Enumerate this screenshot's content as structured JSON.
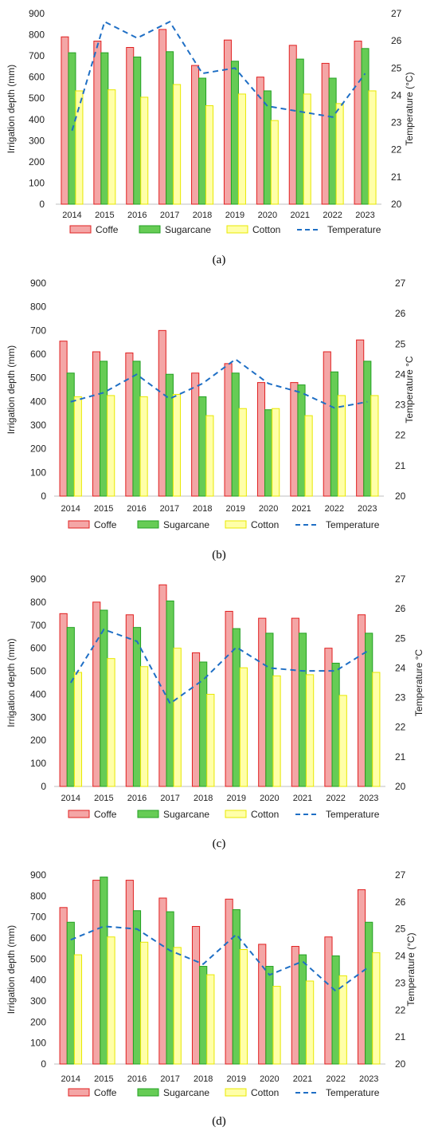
{
  "colors": {
    "coffe_fill": "#F4A6A6",
    "coffe_stroke": "#E02020",
    "sugarcane_fill": "#66CC55",
    "sugarcane_stroke": "#22A022",
    "cotton_fill": "#FFFFA8",
    "cotton_stroke": "#E8E800",
    "temperature": "#1F6FC5"
  },
  "chart_data": [
    {
      "type": "bar",
      "caption": "(a)",
      "categories": [
        "2014",
        "2015",
        "2016",
        "2017",
        "2018",
        "2019",
        "2020",
        "2021",
        "2022",
        "2023"
      ],
      "ylabel": "Irrigation depth  (mm)",
      "y2label": "Temperature (°C)",
      "ylim": [
        0,
        900
      ],
      "y2lim": [
        20,
        27
      ],
      "yticks": [
        "0",
        "100",
        "200",
        "300",
        "400",
        "500",
        "600",
        "700",
        "800",
        "900"
      ],
      "y2ticks": [
        "20",
        "21",
        "22",
        "23",
        "24",
        "25",
        "26",
        "27"
      ],
      "legend_position": "bottom",
      "grid": false,
      "series": [
        {
          "name": "Coffe",
          "values": [
            790,
            770,
            740,
            825,
            655,
            775,
            600,
            750,
            665,
            770
          ]
        },
        {
          "name": "Sugarcane",
          "values": [
            715,
            715,
            695,
            720,
            595,
            675,
            535,
            685,
            595,
            735
          ]
        },
        {
          "name": "Cotton",
          "values": [
            535,
            540,
            505,
            565,
            465,
            520,
            395,
            520,
            475,
            535
          ]
        }
      ],
      "line_series": {
        "name": "Temperature",
        "values": [
          22.7,
          26.7,
          26.1,
          26.7,
          24.8,
          25.0,
          23.6,
          23.4,
          23.2,
          24.8
        ]
      }
    },
    {
      "type": "bar",
      "caption": "(b)",
      "categories": [
        "2014",
        "2015",
        "2016",
        "2017",
        "2018",
        "2019",
        "2020",
        "2021",
        "2022",
        "2023"
      ],
      "ylabel": "Irrigation depth  (mm)",
      "y2label": "Temperature  °C",
      "ylim": [
        0,
        900
      ],
      "y2lim": [
        20,
        27
      ],
      "yticks": [
        "0",
        "100",
        "200",
        "300",
        "400",
        "500",
        "600",
        "700",
        "800",
        "900"
      ],
      "y2ticks": [
        "20",
        "21",
        "22",
        "23",
        "24",
        "25",
        "26",
        "27"
      ],
      "legend_position": "bottom",
      "grid": false,
      "series": [
        {
          "name": "Coffe",
          "values": [
            655,
            610,
            605,
            700,
            520,
            560,
            480,
            480,
            610,
            660
          ]
        },
        {
          "name": "Sugarcane",
          "values": [
            520,
            570,
            570,
            515,
            420,
            520,
            365,
            470,
            525,
            570
          ]
        },
        {
          "name": "Cotton",
          "values": [
            420,
            425,
            420,
            430,
            340,
            370,
            370,
            340,
            425,
            425
          ]
        }
      ],
      "line_series": {
        "name": "Temperature",
        "values": [
          23.1,
          23.4,
          24.0,
          23.2,
          23.7,
          24.5,
          23.7,
          23.4,
          22.9,
          23.1
        ]
      }
    },
    {
      "type": "bar",
      "caption": "(c)",
      "categories": [
        "2014",
        "2015",
        "2016",
        "2017",
        "2018",
        "2019",
        "2020",
        "2021",
        "2022",
        "2023"
      ],
      "ylabel": "Irrigation depth  (mm)",
      "y2label": "Temperature  °C",
      "ylim": [
        0,
        900
      ],
      "y2lim": [
        20,
        27
      ],
      "yticks": [
        "0",
        "100",
        "200",
        "300",
        "400",
        "500",
        "600",
        "700",
        "800",
        "900"
      ],
      "y2ticks": [
        "20",
        "21",
        "22",
        "23",
        "24",
        "25",
        "26",
        "27"
      ],
      "legend_position": "bottom",
      "grid": false,
      "series": [
        {
          "name": "Coffe",
          "values": [
            750,
            800,
            745,
            875,
            580,
            760,
            730,
            730,
            600,
            745
          ]
        },
        {
          "name": "Sugarcane",
          "values": [
            690,
            765,
            690,
            805,
            540,
            685,
            665,
            665,
            535,
            665
          ]
        },
        {
          "name": "Cotton",
          "values": [
            495,
            555,
            520,
            600,
            400,
            515,
            480,
            485,
            395,
            495
          ]
        }
      ],
      "line_series": {
        "name": "Temperature",
        "values": [
          23.5,
          25.3,
          24.9,
          22.8,
          23.6,
          24.7,
          24.0,
          23.9,
          23.9,
          24.6
        ]
      }
    },
    {
      "type": "bar",
      "caption": "(d)",
      "categories": [
        "2014",
        "2015",
        "2016",
        "2017",
        "2018",
        "2019",
        "2020",
        "2021",
        "2022",
        "2023"
      ],
      "ylabel": "Irrigation depth  (mm)",
      "y2label": "Temperature (°C)",
      "ylim": [
        0,
        900
      ],
      "y2lim": [
        20,
        27
      ],
      "yticks": [
        "0",
        "100",
        "200",
        "300",
        "400",
        "500",
        "600",
        "700",
        "800",
        "900"
      ],
      "y2ticks": [
        "20",
        "21",
        "22",
        "23",
        "24",
        "25",
        "26",
        "27"
      ],
      "legend_position": "bottom",
      "grid": false,
      "series": [
        {
          "name": "Coffe",
          "values": [
            745,
            875,
            875,
            790,
            655,
            785,
            570,
            560,
            605,
            830
          ]
        },
        {
          "name": "Sugarcane",
          "values": [
            675,
            890,
            730,
            725,
            465,
            735,
            465,
            520,
            515,
            675
          ]
        },
        {
          "name": "Cotton",
          "values": [
            520,
            605,
            580,
            555,
            425,
            545,
            370,
            395,
            420,
            530
          ]
        }
      ],
      "line_series": {
        "name": "Temperature",
        "values": [
          24.6,
          25.1,
          25.0,
          24.2,
          23.7,
          24.8,
          23.3,
          23.8,
          22.7,
          23.6
        ]
      }
    }
  ]
}
